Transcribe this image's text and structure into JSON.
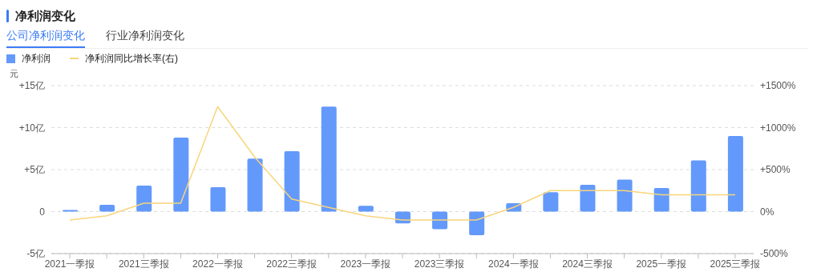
{
  "chart_data": {
    "type": "bar",
    "title": "净利润变化",
    "annotations": [
      "公司净利润变化",
      "行业净利润变化"
    ],
    "ylabel": "元",
    "categories": [
      "2021一季报",
      null,
      "2021三季报",
      null,
      "2022一季报",
      null,
      "2022三季报",
      null,
      "2023一季报",
      null,
      "2023三季报",
      null,
      "2024一季报",
      null,
      "2024三季报",
      null,
      "2025一季报",
      null,
      "2025三季报"
    ],
    "series": [
      {
        "name": "净利润",
        "color": "#6399fb",
        "values": [
          0.2,
          0.8,
          3.1,
          8.8,
          2.9,
          6.3,
          7.2,
          12.5,
          0.7,
          -1.4,
          -2.1,
          -2.8,
          1.0,
          2.3,
          3.2,
          3.8,
          2.8,
          6.1,
          9.0
        ]
      },
      {
        "name": "净利润同比增长率(右)",
        "type": "line",
        "axis": "y2",
        "color": "#f8d57a",
        "values": [
          -100,
          -50,
          100,
          100,
          1250,
          650,
          150,
          50,
          -50,
          -100,
          -100,
          -100,
          50,
          250,
          250,
          250,
          200,
          200,
          200
        ]
      }
    ],
    "ylim": [
      -5,
      15
    ],
    "yticks": [
      {
        "value": -5,
        "label": "-5亿"
      },
      {
        "value": 0,
        "label": "0"
      },
      {
        "value": 5,
        "label": "+5亿"
      },
      {
        "value": 10,
        "label": "+10亿"
      },
      {
        "value": 15,
        "label": "+15亿"
      }
    ],
    "y2lim": [
      -500,
      1500
    ],
    "y2ticks": [
      {
        "value": -500,
        "label": "-500%"
      },
      {
        "value": 0,
        "label": "0%"
      },
      {
        "value": 500,
        "label": "+500%"
      },
      {
        "value": 1000,
        "label": "+1000%"
      },
      {
        "value": 1500,
        "label": "+1500%"
      }
    ],
    "grid": "y",
    "legend": "top left",
    "marker": "none",
    "line_style": "solid"
  }
}
